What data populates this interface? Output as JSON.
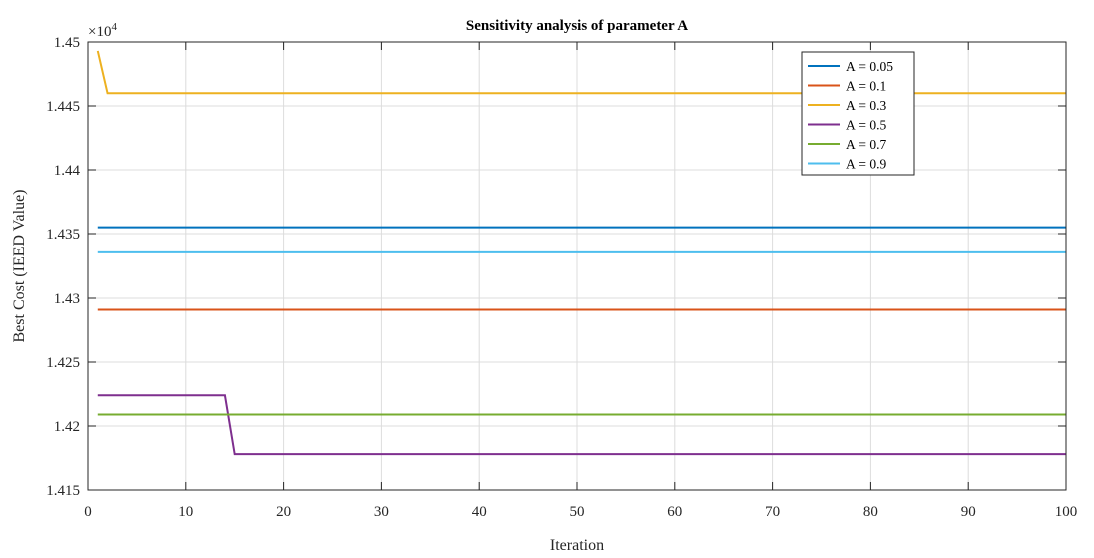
{
  "chart_data": {
    "type": "line",
    "title": "Sensitivity analysis of parameter A",
    "xlabel": "Iteration",
    "ylabel": "Best Cost (IEED Value)",
    "y_exponent_label": "×10",
    "y_exponent_power": "4",
    "xlim": [
      0,
      100
    ],
    "ylim": [
      1.415,
      1.45
    ],
    "xticks": [
      0,
      10,
      20,
      30,
      40,
      50,
      60,
      70,
      80,
      90,
      100
    ],
    "xtick_labels": [
      "0",
      "10",
      "20",
      "30",
      "40",
      "50",
      "60",
      "70",
      "80",
      "90",
      "100"
    ],
    "yticks": [
      1.415,
      1.42,
      1.425,
      1.43,
      1.435,
      1.44,
      1.445,
      1.45
    ],
    "ytick_labels": [
      "1.415",
      "1.42",
      "1.425",
      "1.43",
      "1.435",
      "1.44",
      "1.445",
      "1.45"
    ],
    "grid": true,
    "legend_position": "top-right",
    "series": [
      {
        "name": "A = 0.05",
        "color": "#0072bd",
        "points": [
          [
            1,
            1.4355
          ],
          [
            100,
            1.4355
          ]
        ]
      },
      {
        "name": "A = 0.1",
        "color": "#d95319",
        "points": [
          [
            1,
            1.4291
          ],
          [
            100,
            1.4291
          ]
        ]
      },
      {
        "name": "A = 0.3",
        "color": "#edb120",
        "points": [
          [
            1,
            1.4493
          ],
          [
            2,
            1.446
          ],
          [
            100,
            1.446
          ]
        ]
      },
      {
        "name": "A = 0.5",
        "color": "#7e2f8e",
        "points": [
          [
            1,
            1.4224
          ],
          [
            14,
            1.4224
          ],
          [
            15,
            1.4178
          ],
          [
            100,
            1.4178
          ]
        ]
      },
      {
        "name": "A = 0.7",
        "color": "#77ac30",
        "points": [
          [
            1,
            1.4209
          ],
          [
            100,
            1.4209
          ]
        ]
      },
      {
        "name": "A = 0.9",
        "color": "#4dbeee",
        "points": [
          [
            1,
            1.4336
          ],
          [
            100,
            1.4336
          ]
        ]
      }
    ]
  }
}
